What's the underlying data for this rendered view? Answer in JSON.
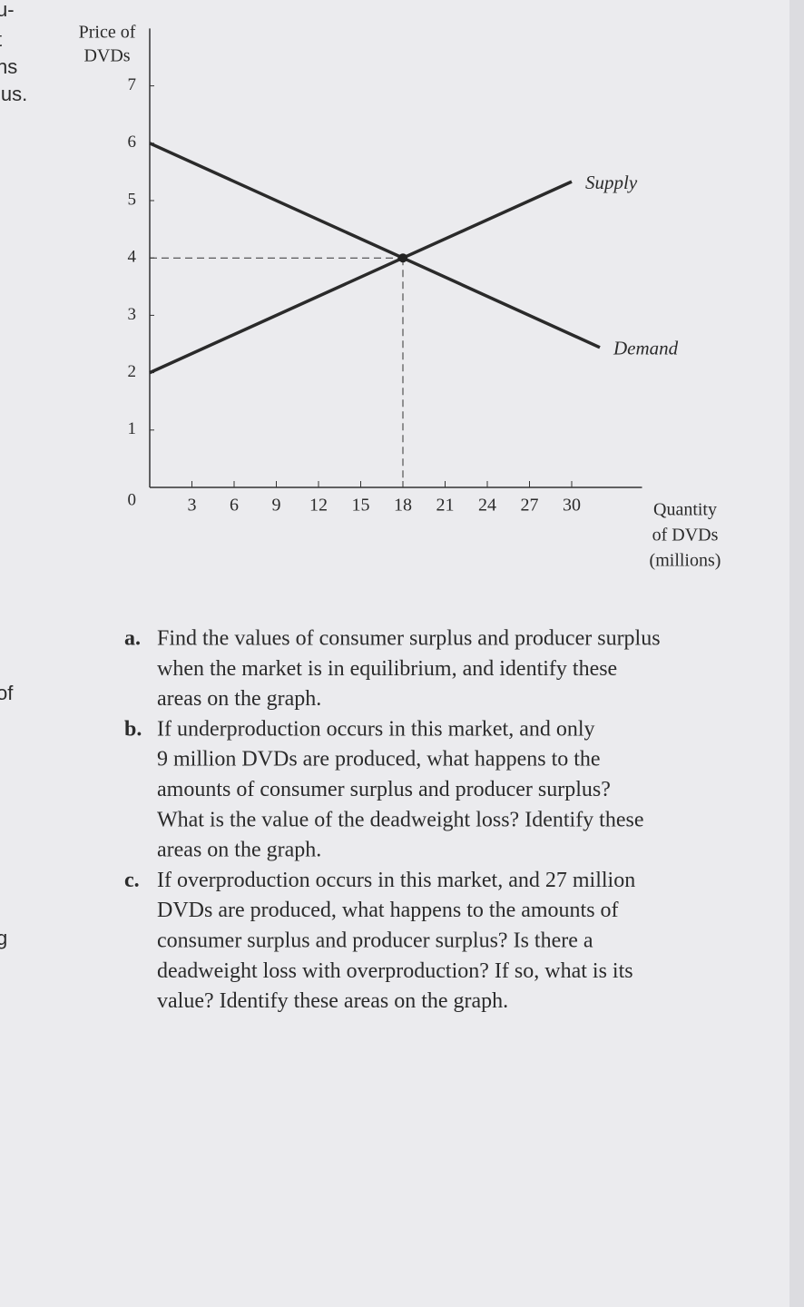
{
  "chart_data": {
    "type": "line",
    "ylabel": [
      "Price of",
      "DVDs"
    ],
    "xlabel": [
      "Quantity",
      "of DVDs",
      "(millions)"
    ],
    "series": [
      {
        "name": "Supply",
        "color": "#2a2a2a",
        "x": [
          0,
          18,
          30
        ],
        "values": [
          2,
          4,
          5.33
        ]
      },
      {
        "name": "Demand",
        "color": "#2a2a2a",
        "x": [
          0,
          18,
          32
        ],
        "values": [
          6,
          4,
          2.44
        ]
      }
    ],
    "equilibrium": {
      "x": 18,
      "y": 4
    },
    "xlim": [
      0,
      35
    ],
    "ylim": [
      0,
      8
    ],
    "xticks": [
      3,
      6,
      9,
      12,
      15,
      18,
      21,
      24,
      27,
      30
    ],
    "yticks": [
      0,
      1,
      2,
      3,
      4,
      5,
      6,
      7
    ]
  },
  "questions": [
    {
      "letter": "a.",
      "lines": [
        "Find the values of consumer surplus and producer surplus",
        "when the market is in equilibrium, and identify these",
        "areas on the graph."
      ]
    },
    {
      "letter": "b.",
      "lines": [
        "If underproduction occurs in this market, and only",
        "9 million DVDs are produced, what happens to the",
        "amounts of consumer surplus and producer surplus?",
        "What is the value of the deadweight loss? Identify these",
        "areas on the graph."
      ]
    },
    {
      "letter": "c.",
      "lines": [
        "If overproduction occurs in this market, and 27 million",
        "DVDs are produced, what happens to the amounts of",
        "consumer surplus and producer surplus? Is there a",
        "deadweight loss with overproduction? If so, what is its",
        "value? Identify these areas on the graph."
      ]
    }
  ],
  "margin_fragments": [
    "u-",
    "t",
    "ns",
    "lus.",
    "of",
    "g"
  ]
}
